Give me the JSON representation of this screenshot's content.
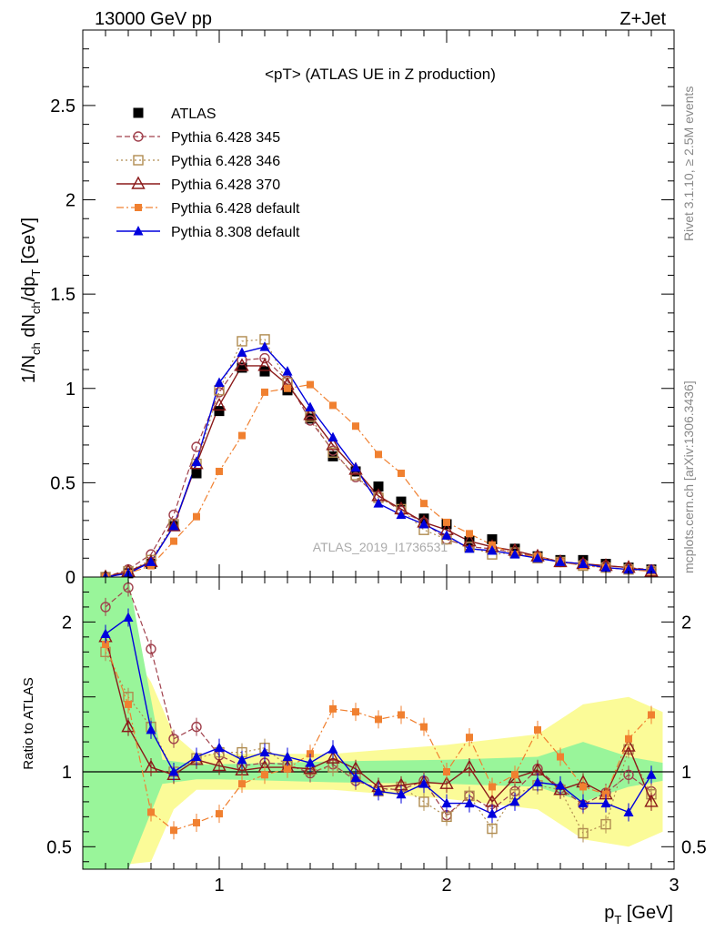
{
  "header": {
    "left": "13000 GeV pp",
    "right": "Z+Jet"
  },
  "main_title": "<pT> (ATLAS UE in Z production)",
  "watermark": "ATLAS_2019_I1736531",
  "side_text": {
    "rivet": "Rivet 3.1.10, ≥ 2.5M events",
    "mcplots": "mcplots.cern.ch [arXiv:1306.3436]"
  },
  "colors": {
    "ATLAS": "#000000",
    "Pythia 6.428 345": "#a0404c",
    "Pythia 6.428 346": "#b08c50",
    "Pythia 6.428 370": "#8b1a1a",
    "Pythia 6.428 default": "#f08030",
    "Pythia 8.308 default": "#0000dd",
    "band_inner": "#99f59a",
    "band_outer": "#fbfb98"
  },
  "chart_data": [
    {
      "type": "line",
      "panel": "main",
      "ylabel": "1/N_ch dN_ch/dp_T [GeV]",
      "ylim": [
        0,
        2.9
      ],
      "yticks": [
        "0",
        "0.5",
        "1",
        "1.5",
        "2",
        "2.5"
      ],
      "legend_position": "top-left",
      "x": [
        0.5,
        0.6,
        0.7,
        0.8,
        0.9,
        1.0,
        1.1,
        1.2,
        1.3,
        1.4,
        1.5,
        1.6,
        1.7,
        1.8,
        1.9,
        2.0,
        2.1,
        2.2,
        2.3,
        2.4,
        2.5,
        2.6,
        2.7,
        2.8,
        2.9
      ],
      "series": [
        {
          "name": "ATLAS",
          "marker": "square-filled",
          "values": [
            0.0,
            0.02,
            0.07,
            0.27,
            0.55,
            0.88,
            1.11,
            1.09,
            0.99,
            0.84,
            0.64,
            0.56,
            0.48,
            0.4,
            0.31,
            0.28,
            0.19,
            0.2,
            0.15,
            0.11,
            0.09,
            0.09,
            0.07,
            0.05,
            0.04
          ]
        },
        {
          "name": "Pythia 6.428 345",
          "marker": "circle-open",
          "values": [
            0.0,
            0.04,
            0.12,
            0.33,
            0.69,
            0.98,
            1.15,
            1.16,
            1.04,
            0.83,
            0.67,
            0.53,
            0.43,
            0.35,
            0.29,
            0.2,
            0.16,
            0.15,
            0.13,
            0.11,
            0.08,
            0.07,
            0.06,
            0.05,
            0.04
          ]
        },
        {
          "name": "Pythia 6.428 346",
          "marker": "square-open",
          "values": [
            0.0,
            0.03,
            0.09,
            0.28,
            0.6,
            0.99,
            1.25,
            1.26,
            1.03,
            0.85,
            0.66,
            0.54,
            0.42,
            0.36,
            0.25,
            0.2,
            0.16,
            0.12,
            0.13,
            0.1,
            0.08,
            0.06,
            0.05,
            0.04,
            0.03
          ]
        },
        {
          "name": "Pythia 6.428 370",
          "marker": "triangle-open",
          "values": [
            0.0,
            0.03,
            0.08,
            0.27,
            0.6,
            0.91,
            1.12,
            1.12,
            1.02,
            0.86,
            0.7,
            0.57,
            0.43,
            0.36,
            0.29,
            0.25,
            0.19,
            0.16,
            0.14,
            0.11,
            0.08,
            0.07,
            0.06,
            0.05,
            0.03
          ]
        },
        {
          "name": "Pythia 6.428 default",
          "marker": "square-filled-small",
          "values": [
            0.0,
            0.02,
            0.06,
            0.19,
            0.32,
            0.56,
            0.75,
            0.98,
            1.0,
            1.02,
            0.91,
            0.8,
            0.65,
            0.55,
            0.39,
            0.29,
            0.23,
            0.17,
            0.12,
            0.11,
            0.08,
            0.06,
            0.05,
            0.04,
            0.03
          ]
        },
        {
          "name": "Pythia 8.308 default",
          "marker": "triangle-filled",
          "values": [
            0.0,
            0.02,
            0.08,
            0.27,
            0.61,
            1.03,
            1.19,
            1.22,
            1.09,
            0.9,
            0.74,
            0.58,
            0.39,
            0.33,
            0.28,
            0.22,
            0.15,
            0.14,
            0.12,
            0.1,
            0.08,
            0.07,
            0.05,
            0.04,
            0.04
          ]
        }
      ]
    },
    {
      "type": "line",
      "panel": "ratio",
      "ylabel": "Ratio to ATLAS",
      "xlabel": "p_T [GeV]",
      "xlim": [
        0.4,
        3.0
      ],
      "xticks": [
        "1",
        "2",
        "3"
      ],
      "ylim": [
        0.35,
        2.3
      ],
      "yticks": [
        "0.5",
        "1",
        "2"
      ],
      "x": [
        0.5,
        0.6,
        0.7,
        0.8,
        0.9,
        1.0,
        1.1,
        1.2,
        1.3,
        1.4,
        1.5,
        1.6,
        1.7,
        1.8,
        1.9,
        2.0,
        2.1,
        2.2,
        2.3,
        2.4,
        2.5,
        2.6,
        2.7,
        2.8,
        2.9
      ],
      "bands": {
        "inner": [
          [
            0.4,
            2.3
          ],
          [
            0.6,
            2.3
          ],
          [
            0.75,
            1.08
          ],
          [
            0.9,
            1.05
          ],
          [
            1.0,
            1.05
          ],
          [
            1.5,
            1.07
          ],
          [
            2.0,
            1.08
          ],
          [
            2.4,
            1.1
          ],
          [
            2.6,
            1.2
          ],
          [
            2.8,
            1.1
          ],
          [
            2.95,
            1.06
          ]
        ],
        "outer": [
          [
            0.4,
            2.3
          ],
          [
            0.7,
            1.6
          ],
          [
            0.8,
            1.25
          ],
          [
            0.9,
            1.12
          ],
          [
            1.5,
            1.12
          ],
          [
            2.0,
            1.18
          ],
          [
            2.4,
            1.25
          ],
          [
            2.6,
            1.45
          ],
          [
            2.8,
            1.5
          ],
          [
            2.95,
            1.4
          ]
        ]
      },
      "series": [
        {
          "name": "Pythia 6.428 345",
          "values": [
            2.1,
            2.23,
            1.82,
            1.22,
            1.3,
            1.11,
            1.04,
            1.06,
            1.05,
            0.99,
            1.05,
            0.94,
            0.89,
            0.88,
            0.94,
            0.71,
            0.84,
            0.75,
            0.87,
            1.02,
            0.89,
            0.78,
            0.86,
            0.98,
            0.87
          ]
        },
        {
          "name": "Pythia 6.428 346",
          "values": [
            1.8,
            1.5,
            1.3,
            1.0,
            1.09,
            1.13,
            1.13,
            1.16,
            1.04,
            1.01,
            1.03,
            0.96,
            0.87,
            0.9,
            0.8,
            0.7,
            0.84,
            0.62,
            0.85,
            0.91,
            0.88,
            0.59,
            0.65,
            1.15,
            0.85
          ]
        },
        {
          "name": "Pythia 6.428 370",
          "values": [
            1.9,
            1.3,
            1.03,
            0.98,
            1.08,
            1.04,
            1.01,
            1.03,
            1.03,
            1.02,
            1.09,
            1.02,
            0.9,
            0.91,
            0.93,
            0.92,
            1.03,
            0.8,
            0.96,
            1.01,
            0.88,
            0.93,
            0.85,
            1.17,
            0.8
          ]
        },
        {
          "name": "Pythia 6.428 default",
          "values": [
            1.85,
            1.45,
            0.73,
            0.61,
            0.66,
            0.72,
            0.92,
            0.98,
            1.02,
            1.12,
            1.42,
            1.4,
            1.35,
            1.38,
            1.3,
            1.0,
            1.23,
            0.9,
            0.98,
            1.28,
            1.1,
            0.9,
            0.85,
            1.22,
            1.38
          ]
        },
        {
          "name": "Pythia 8.308 default",
          "values": [
            1.92,
            2.03,
            1.28,
            1.0,
            1.1,
            1.16,
            1.08,
            1.13,
            1.1,
            1.06,
            1.15,
            0.96,
            0.87,
            0.85,
            0.92,
            0.79,
            0.79,
            0.72,
            0.8,
            0.93,
            0.91,
            0.79,
            0.79,
            0.73,
            0.98
          ]
        }
      ]
    }
  ]
}
